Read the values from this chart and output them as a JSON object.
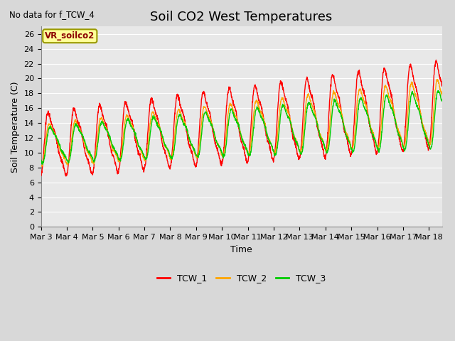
{
  "title": "Soil CO2 West Temperatures",
  "xlabel": "Time",
  "ylabel": "Soil Temperature (C)",
  "no_data_text": "No data for f_TCW_4",
  "annotation_text": "VR_soilco2",
  "ylim": [
    0,
    27
  ],
  "yticks": [
    0,
    2,
    4,
    6,
    8,
    10,
    12,
    14,
    16,
    18,
    20,
    22,
    24,
    26
  ],
  "background_color": "#d8d8d8",
  "plot_bg_color": "#e8e8e8",
  "grid_color": "#ffffff",
  "line_colors": {
    "TCW_1": "#ff0000",
    "TCW_2": "#ffa500",
    "TCW_3": "#00cc00"
  },
  "x_tick_labels": [
    "Mar 3",
    "Mar 4",
    "Mar 5",
    "Mar 6",
    "Mar 7",
    "Mar 8",
    "Mar 9",
    "Mar 10",
    "Mar 11",
    "Mar 12",
    "Mar 13",
    "Mar 14",
    "Mar 15",
    "Mar 16",
    "Mar 17",
    "Mar 18"
  ],
  "title_fontsize": 13,
  "axis_label_fontsize": 9,
  "tick_fontsize": 8
}
